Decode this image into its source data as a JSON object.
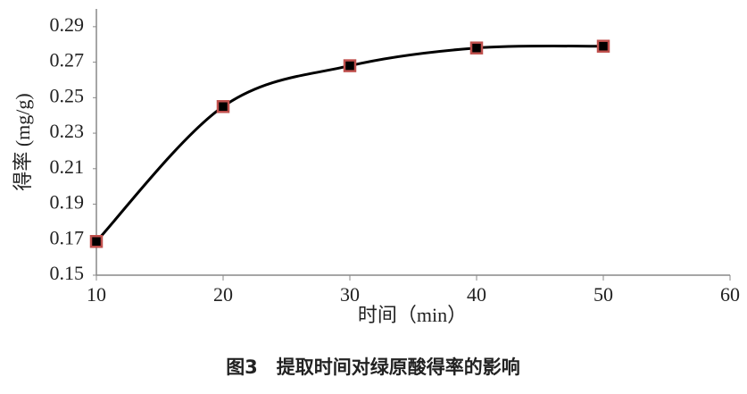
{
  "chart_data": {
    "type": "line",
    "caption": "图3　提取时间对绿原酸得率的影响",
    "xlabel": "时间（min）",
    "ylabel": "得率 (mg/g)",
    "x": [
      10,
      20,
      30,
      40,
      50
    ],
    "series": [
      {
        "color": "#000000",
        "marker_color": "#000000",
        "marker_edge_color": "#c0504d",
        "values": [
          0.169,
          0.245,
          0.268,
          0.278,
          0.279
        ]
      }
    ],
    "xlim": [
      10,
      60
    ],
    "xticks": [
      10,
      20,
      30,
      40,
      50,
      60
    ],
    "ylim": [
      0.15,
      0.3
    ],
    "yticks": [
      0.15,
      0.17,
      0.19,
      0.21,
      0.23,
      0.25,
      0.27,
      0.29
    ],
    "grid": false,
    "smooth": true
  }
}
